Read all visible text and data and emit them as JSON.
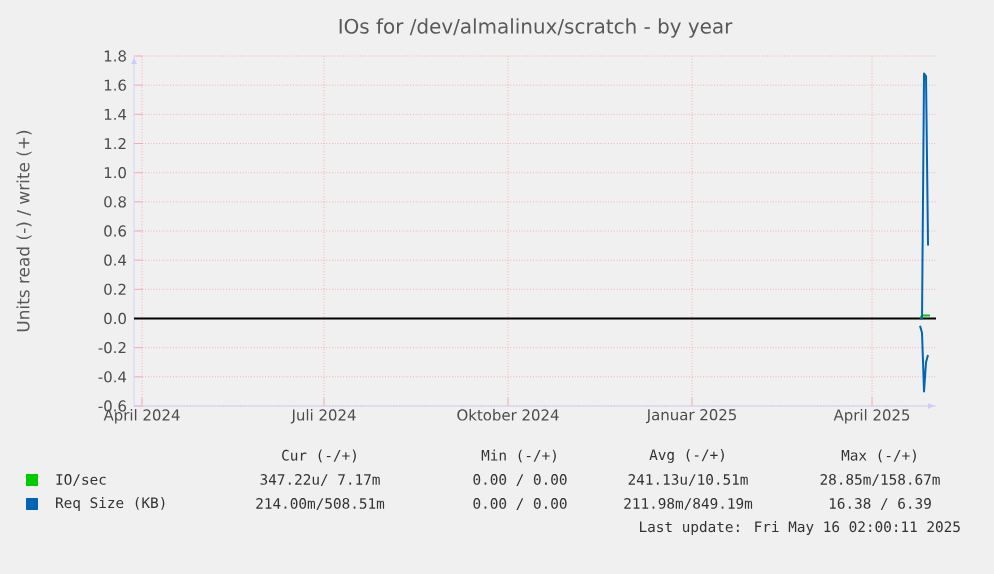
{
  "chart_data": {
    "type": "line",
    "title": "IOs for /dev/almalinux/scratch - by year",
    "ylabel": "Units read (-) / write (+)",
    "xlim": [
      "2024-03-28",
      "2025-05-03"
    ],
    "xticks": [
      {
        "value": "2024-04-01",
        "label": "April 2024"
      },
      {
        "value": "2024-07-01",
        "label": "Juli 2024"
      },
      {
        "value": "2024-10-01",
        "label": "Oktober 2024"
      },
      {
        "value": "2025-01-01",
        "label": "Januar 2025"
      },
      {
        "value": "2025-04-01",
        "label": "April 2025"
      }
    ],
    "ylim": [
      -0.6,
      1.8
    ],
    "yticks": [
      -0.6,
      -0.4,
      -0.2,
      {
        "value": 0,
        "label": "0.0"
      },
      0.2,
      0.4,
      0.6,
      0.8,
      {
        "value": 1,
        "label": "1.0"
      },
      1.2,
      1.4,
      1.6,
      1.8
    ],
    "grid": true,
    "legend": "bottom",
    "ref_lines": [
      {
        "axis": "y",
        "value": 0,
        "color": "#000000"
      }
    ],
    "series": [
      {
        "name": "IO/sec",
        "color": "#00cc00",
        "x": [
          "2025-04-25",
          "2025-04-26",
          "2025-04-27",
          "2025-04-28",
          "2025-04-29",
          "2025-04-30"
        ],
        "values": [
          0,
          0.02,
          0.02,
          0.02,
          0.02,
          0.02
        ]
      },
      {
        "name": "Req Size (KB)",
        "color": "#0066b3",
        "x": [
          "2025-04-25",
          "2025-04-26",
          "2025-04-27",
          "2025-04-28",
          "2025-04-29"
        ],
        "values": [
          0,
          0,
          1.68,
          1.66,
          0.5
        ]
      },
      {
        "color": "#0066b3",
        "x": [
          "2025-04-25",
          "2025-04-26",
          "2025-04-27",
          "2025-04-28",
          "2025-04-29"
        ],
        "values": [
          -0.05,
          -0.1,
          -0.5,
          -0.3,
          -0.25
        ]
      }
    ],
    "annotations": [
      "Cur (-/+)",
      "Min (-/+)",
      "Avg (-/+)",
      "Max (-/+)",
      "347.22u/ 7.17m",
      "0.00 / 0.00",
      "241.13u/10.51m",
      "28.85m/158.67m",
      "214.00m/508.51m",
      "0.00 / 0.00",
      "211.98m/849.19m",
      "16.38 / 6.39",
      "Last update: Fri May 16 02:00:11 2025"
    ]
  }
}
